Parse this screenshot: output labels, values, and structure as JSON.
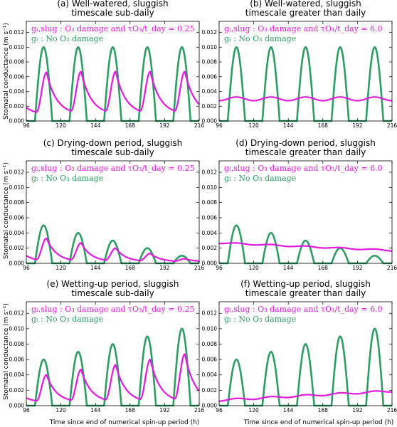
{
  "figure": {
    "ylabel": "Stomatal conductance (m s⁻¹)",
    "xlabel": "Time since end of numerical spin-up period (h)"
  },
  "colors": {
    "sluggish": "#e419e0",
    "no_damage": "#2e9c63"
  },
  "chart_data": [
    {
      "type": "line",
      "panel": "(a)",
      "title_lines": [
        "(a)  Well-watered, sluggish",
        "timescale sub-daily"
      ],
      "legend": [
        "gₗ,slug  : O₃ damage and τO₃/t_day = 0.25",
        "gₗ        : No O₃ damage"
      ],
      "xlim": [
        96,
        216
      ],
      "ylim": [
        0,
        0.0135
      ],
      "xticks": [
        "96",
        "120",
        "144",
        "168",
        "192",
        "216"
      ],
      "yticks": [
        "0.000",
        "0.002",
        "0.004",
        "0.006",
        "0.008",
        "0.010",
        "0.012"
      ],
      "series": [
        {
          "name": "gₗ : No O₃ damage",
          "kind": "diurnal",
          "peaks": [
            0.01,
            0.01,
            0.01,
            0.01,
            0.01
          ]
        },
        {
          "name": "gₗ,slug : O₃ damage",
          "kind": "lagged",
          "peaks": [
            0.0066,
            0.0067,
            0.0067,
            0.0067,
            0.0067
          ],
          "start": 0.0018,
          "floor": 0.0017
        }
      ]
    },
    {
      "type": "line",
      "panel": "(b)",
      "title_lines": [
        "(b)  Well-watered, sluggish",
        "timescale greater than daily"
      ],
      "legend": [
        "gₗ,slug  : O₃ damage and τO₃/t_day = 6.0",
        "gₗ        : No O₃ damage"
      ],
      "xlim": [
        96,
        216
      ],
      "ylim": [
        0,
        0.0135
      ],
      "xticks": [
        "96",
        "120",
        "144",
        "168",
        "192",
        "216"
      ],
      "yticks": [
        "0.000",
        "0.002",
        "0.004",
        "0.006",
        "0.008",
        "0.010",
        "0.012"
      ],
      "series": [
        {
          "name": "gₗ : No O₃ damage",
          "kind": "diurnal",
          "peaks": [
            0.01,
            0.01,
            0.01,
            0.01,
            0.01
          ]
        },
        {
          "name": "gₗ,slug : O₃ damage",
          "kind": "smooth",
          "base_start": 0.003,
          "base_end": 0.003,
          "wiggle": 0.00025
        }
      ]
    },
    {
      "type": "line",
      "panel": "(c)",
      "title_lines": [
        "(c)  Drying-down period, sluggish",
        "timescale sub-daily"
      ],
      "legend": [
        "gₗ,slug  : O₃ damage and τO₃/t_day = 0.25",
        "gₗ        : No O₃ damage"
      ],
      "xlim": [
        96,
        216
      ],
      "ylim": [
        0,
        0.0135
      ],
      "xticks": [
        "96",
        "120",
        "144",
        "168",
        "192",
        "216"
      ],
      "yticks": [
        "0.000",
        "0.002",
        "0.004",
        "0.006",
        "0.008",
        "0.010",
        "0.012"
      ],
      "series": [
        {
          "name": "gₗ : No O₃ damage",
          "kind": "diurnal",
          "peaks": [
            0.005,
            0.004,
            0.003,
            0.002,
            0.001
          ]
        },
        {
          "name": "gₗ,slug : O₃ damage",
          "kind": "lagged",
          "peaks": [
            0.0033,
            0.0027,
            0.002,
            0.0013,
            0.0006
          ],
          "start": 0.001,
          "floor": 0.0004
        }
      ]
    },
    {
      "type": "line",
      "panel": "(d)",
      "title_lines": [
        "(d)  Drying-down period, sluggish",
        "timescale greater than daily"
      ],
      "legend": [
        "gₗ,slug  : O₃ damage and τO₃/t_day = 6.0",
        "gₗ        : No O₃ damage"
      ],
      "xlim": [
        96,
        216
      ],
      "ylim": [
        0,
        0.0135
      ],
      "xticks": [
        "96",
        "120",
        "144",
        "168",
        "192",
        "216"
      ],
      "yticks": [
        "0.000",
        "0.002",
        "0.004",
        "0.006",
        "0.008",
        "0.010",
        "0.012"
      ],
      "series": [
        {
          "name": "gₗ : No O₃ damage",
          "kind": "diurnal",
          "peaks": [
            0.005,
            0.004,
            0.003,
            0.002,
            0.001
          ]
        },
        {
          "name": "gₗ,slug : O₃ damage",
          "kind": "smooth",
          "base_start": 0.0027,
          "base_end": 0.0017,
          "wiggle": 8e-05
        }
      ]
    },
    {
      "type": "line",
      "panel": "(e)",
      "title_lines": [
        "(e)  Wetting-up period, sluggish",
        "timescale sub-daily"
      ],
      "legend": [
        "gₗ,slug  : O₃ damage and τO₃/t_day = 0.25",
        "gₗ        : No O₃ damage"
      ],
      "xlim": [
        96,
        216
      ],
      "ylim": [
        0,
        0.0135
      ],
      "xticks": [
        "96",
        "120",
        "144",
        "168",
        "192",
        "216"
      ],
      "yticks": [
        "0.000",
        "0.002",
        "0.004",
        "0.006",
        "0.008",
        "0.010",
        "0.012"
      ],
      "series": [
        {
          "name": "gₗ : No O₃ damage",
          "kind": "diurnal",
          "peaks": [
            0.006,
            0.007,
            0.008,
            0.009,
            0.01
          ]
        },
        {
          "name": "gₗ,slug : O₃ damage",
          "kind": "lagged",
          "peaks": [
            0.004,
            0.0047,
            0.0053,
            0.006,
            0.0067
          ],
          "start": 0.001,
          "floor": 0.0008
        }
      ]
    },
    {
      "type": "line",
      "panel": "(f)",
      "title_lines": [
        "(f)  Wetting-up period, sluggish",
        "timescale greater than daily"
      ],
      "legend": [
        "gₗ,slug  : O₃ damage and τO₃/t_day = 6.0",
        "gₗ        : No O₃ damage"
      ],
      "xlim": [
        96,
        216
      ],
      "ylim": [
        0,
        0.0135
      ],
      "xticks": [
        "96",
        "120",
        "144",
        "168",
        "192",
        "216"
      ],
      "yticks": [
        "0.000",
        "0.002",
        "0.004",
        "0.006",
        "0.008",
        "0.010",
        "0.012"
      ],
      "series": [
        {
          "name": "gₗ : No O₃ damage",
          "kind": "diurnal",
          "peaks": [
            0.006,
            0.007,
            0.008,
            0.009,
            0.01
          ]
        },
        {
          "name": "gₗ,slug : O₃ damage",
          "kind": "smooth",
          "base_start": 0.0007,
          "base_end": 0.0019,
          "wiggle": 0.00012
        }
      ]
    }
  ]
}
